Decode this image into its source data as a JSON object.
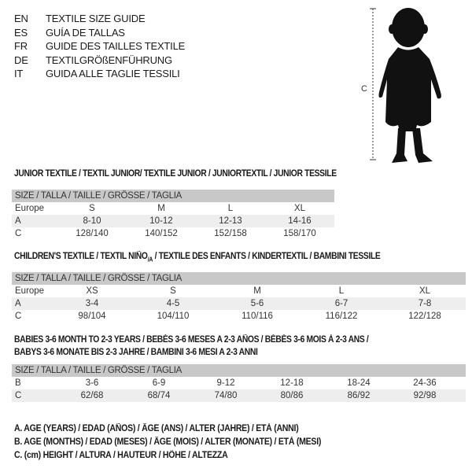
{
  "header": {
    "languages": [
      {
        "code": "EN",
        "title": "TEXTILE SIZE GUIDE"
      },
      {
        "code": "ES",
        "title": "GUÍA DE TALLAS"
      },
      {
        "code": "FR",
        "title": "GUIDE DES TAILLES TEXTILE"
      },
      {
        "code": "DE",
        "title": "TEXTILGRÖßENFÜHRUNG"
      },
      {
        "code": "IT",
        "title": "GUIDA ALLE TAGLIE TESSILI"
      }
    ]
  },
  "figure": {
    "measure_label": "C",
    "icon": "child-silhouette-icon"
  },
  "junior": {
    "title": "JUNIOR TEXTILE / TEXTIL JUNIOR/ TEXTILE JUNIOR / JUNIORTEXTIL / JUNIOR TESSILE",
    "header": "SIZE / TALLA / TAILLE / GRÖSSE / TAGLIA",
    "rows": [
      {
        "label": "Europe",
        "cells": [
          "S",
          "M",
          "L",
          "XL"
        ]
      },
      {
        "label": "A",
        "cells": [
          "8-10",
          "10-12",
          "12-13",
          "14-16"
        ]
      },
      {
        "label": "C",
        "cells": [
          "128/140",
          "140/152",
          "152/158",
          "158/170"
        ]
      }
    ]
  },
  "children": {
    "title_a": "CHILDREN'S TEXTILE / TEXTIL NIÑO",
    "title_sub": "/A",
    "title_b": " / TEXTILE DES ENFANTS / KINDERTEXTIL / BAMBINI TESSILE",
    "header": "SIZE / TALLA / TAILLE / GRÖSSE / TAGLIA",
    "rows": [
      {
        "label": "Europe",
        "cells": [
          "XS",
          "S",
          "M",
          "L",
          "XL"
        ]
      },
      {
        "label": "A",
        "cells": [
          "3-4",
          "4-5",
          "5-6",
          "6-7",
          "7-8"
        ]
      },
      {
        "label": "C",
        "cells": [
          "98/104",
          "104/110",
          "110/116",
          "116/122",
          "122/128"
        ]
      }
    ]
  },
  "babies": {
    "title_line1": "BABIES 3-6 MONTH TO 2-3 YEARS / BEBÉS 3-6 MESES A 2-3 AÑOS / BÉBÉS 3-6 MOIS À 2-3 ANS /",
    "title_line2": "BABYS 3-6 MONATE BIS 2-3 JAHRE / BAMBINI 3-6 MESI A 2-3 ANNI",
    "header": "SIZE / TALLA / TAILLE / GRÖSSE / TAGLIA",
    "rows": [
      {
        "label": "B",
        "cells": [
          "3-6",
          "6-9",
          "9-12",
          "12-18",
          "18-24",
          "24-36"
        ]
      },
      {
        "label": "C",
        "cells": [
          "62/68",
          "68/74",
          "74/80",
          "80/86",
          "86/92",
          "92/98"
        ]
      }
    ]
  },
  "legend": [
    "A. AGE (YEARS) / EDAD (AÑOS) / ÂGE (ANS) / ALTER (JAHRE) / ETÀ (ANNI)",
    "B. AGE (MONTHS) / EDAD (MESES) / ÂGE (MOIS) / ALTER (MONATE) / ETÀ (MESI)",
    "C. (cm) HEIGHT / ALTURA / HAUTEUR / HÖHE / ALTEZZA"
  ]
}
